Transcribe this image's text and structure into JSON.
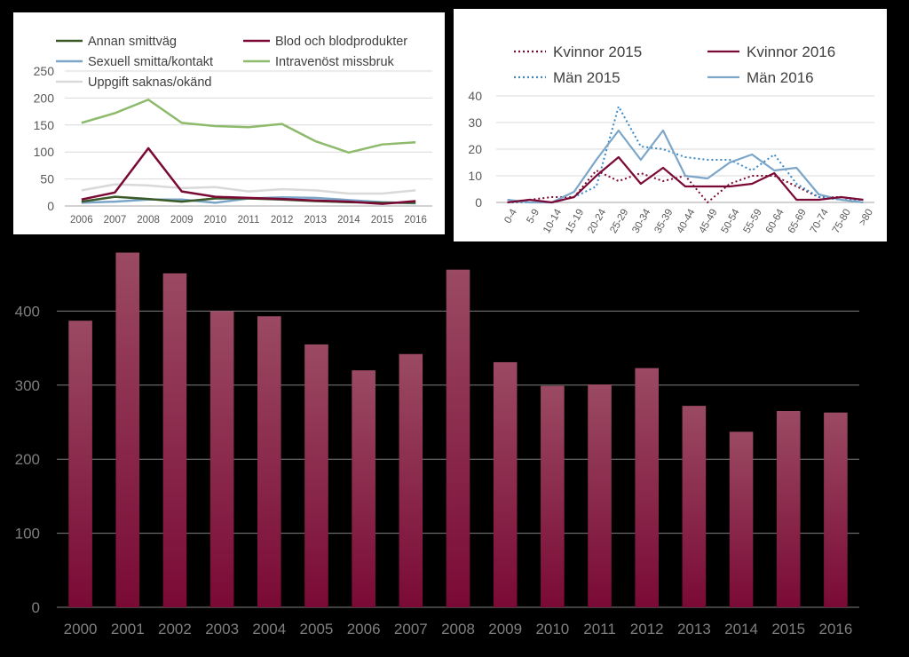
{
  "chart_data": [
    {
      "type": "bar",
      "title": "",
      "categories": [
        "2000",
        "2001",
        "2002",
        "2003",
        "2004",
        "2005",
        "2006",
        "2007",
        "2008",
        "2009",
        "2010",
        "2011",
        "2012",
        "2013",
        "2014",
        "2015",
        "2016"
      ],
      "values": [
        387,
        479,
        451,
        400,
        393,
        355,
        320,
        342,
        456,
        331,
        299,
        301,
        323,
        272,
        237,
        265,
        263
      ],
      "ylim": [
        0,
        500
      ],
      "yticks": [
        0,
        100,
        200,
        300,
        400
      ],
      "grid": true,
      "colors": {
        "bar_top": "#9b4a63",
        "bar_bottom": "#7a0a35",
        "axis_text": "#7f7f7f",
        "grid": "#7f7f7f"
      }
    },
    {
      "type": "line",
      "title": "",
      "x": [
        "2006",
        "2007",
        "2008",
        "2009",
        "2010",
        "2011",
        "2012",
        "2013",
        "2014",
        "2015",
        "2016"
      ],
      "ylim": [
        0,
        250
      ],
      "yticks": [
        0,
        50,
        100,
        150,
        200,
        250
      ],
      "legend": "top",
      "series": [
        {
          "name": "Annan smittväg",
          "color": "#3b5a28",
          "values": [
            8,
            17,
            13,
            8,
            14,
            14,
            12,
            9,
            7,
            6,
            6
          ]
        },
        {
          "name": "Blod och blodprodukter",
          "color": "#7a0a35",
          "values": [
            12,
            25,
            107,
            27,
            17,
            15,
            13,
            10,
            8,
            4,
            9
          ]
        },
        {
          "name": "Sexuell smitta/kontakt",
          "color": "#7ba6c9",
          "values": [
            6,
            8,
            12,
            12,
            6,
            14,
            16,
            15,
            11,
            7,
            5
          ]
        },
        {
          "name": "Intravenöst missbruk",
          "color": "#8eba6b",
          "values": [
            154,
            172,
            197,
            154,
            148,
            146,
            152,
            120,
            99,
            114,
            118
          ]
        },
        {
          "name": "Uppgift saknas/okänd",
          "color": "#d9d9d9",
          "values": [
            29,
            40,
            38,
            33,
            35,
            27,
            31,
            29,
            23,
            23,
            29
          ]
        }
      ]
    },
    {
      "type": "line",
      "title": "",
      "x": [
        "0-4",
        "5-9",
        "10-14",
        "15-19",
        "20-24",
        "25-29",
        "30-34",
        "35-39",
        "40-44",
        "45-49",
        "50-54",
        "55-59",
        "60-64",
        "65-69",
        "70-74",
        "75-80",
        ">80"
      ],
      "ylim": [
        0,
        40
      ],
      "yticks": [
        0,
        10,
        20,
        30,
        40
      ],
      "legend": "top",
      "series": [
        {
          "name": "Kvinnor 2015",
          "color": "#7a0a35",
          "dash": "dotted",
          "values": [
            0,
            1,
            2,
            2,
            12,
            8,
            11,
            8,
            10,
            0,
            7,
            10,
            10,
            6,
            2,
            2,
            1
          ]
        },
        {
          "name": "Kvinnor 2016",
          "color": "#7a0a35",
          "dash": "solid",
          "values": [
            0,
            1,
            0,
            2,
            10,
            17,
            7,
            13,
            6,
            6,
            6,
            7,
            11,
            1,
            1,
            2,
            1
          ]
        },
        {
          "name": "Män 2015",
          "color": "#3b88c3",
          "dash": "dotted",
          "values": [
            0,
            0,
            0,
            2,
            6,
            36,
            21,
            20,
            17,
            16,
            16,
            12,
            18,
            7,
            2,
            1,
            1
          ]
        },
        {
          "name": "Män 2016",
          "color": "#7ba6c9",
          "dash": "solid",
          "values": [
            1,
            0,
            0,
            4,
            16,
            27,
            16,
            27,
            10,
            9,
            15,
            18,
            12,
            13,
            3,
            1,
            0
          ]
        }
      ]
    }
  ]
}
